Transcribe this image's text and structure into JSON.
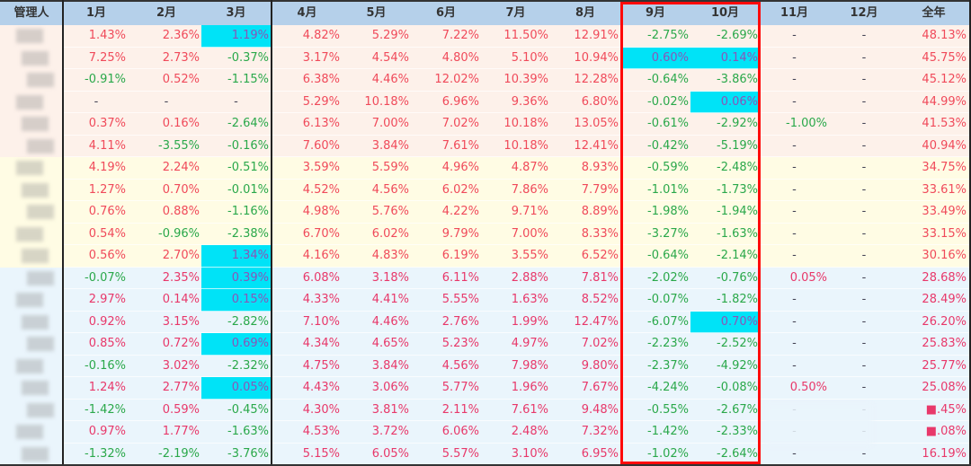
{
  "header": {
    "columns": [
      "管理人",
      "1月",
      "2月",
      "3月",
      "4月",
      "5月",
      "6月",
      "7月",
      "8月",
      "9月",
      "10月",
      "11月",
      "12月",
      "全年"
    ]
  },
  "colors": {
    "header_bg": "#b5d0ea",
    "group1_bg": "#fdf1ea",
    "group2_bg": "#fffce4",
    "group3_bg": "#eaf5fc",
    "positive_text": "#f04a5a",
    "negative_text": "#2aa84a",
    "highlight_bg": "#00e3f7",
    "highlight_text": "#8a55b8",
    "annotation_box": "#ff0a0a"
  },
  "annotation": {
    "highlighted_columns": [
      "9月",
      "10月"
    ]
  },
  "rows": [
    {
      "group": 1,
      "name": "",
      "values": [
        "1.43%",
        "2.36%",
        "1.19%",
        "4.82%",
        "5.29%",
        "7.22%",
        "11.50%",
        "12.91%",
        "-2.75%",
        "-2.69%",
        "-",
        "-",
        "48.13%"
      ],
      "highlight": [
        2
      ]
    },
    {
      "group": 1,
      "name": "",
      "values": [
        "7.25%",
        "2.73%",
        "-0.37%",
        "3.17%",
        "4.54%",
        "4.80%",
        "5.10%",
        "10.94%",
        "0.60%",
        "0.14%",
        "-",
        "-",
        "45.75%"
      ],
      "highlight": [
        8,
        9
      ]
    },
    {
      "group": 1,
      "name": "",
      "values": [
        "-0.91%",
        "0.52%",
        "-1.15%",
        "6.38%",
        "4.46%",
        "12.02%",
        "10.39%",
        "12.28%",
        "-0.64%",
        "-3.86%",
        "-",
        "-",
        "45.12%"
      ],
      "highlight": []
    },
    {
      "group": 1,
      "name": "",
      "values": [
        "-",
        "-",
        "-",
        "5.29%",
        "10.18%",
        "6.96%",
        "9.36%",
        "6.80%",
        "-0.02%",
        "0.06%",
        "-",
        "-",
        "44.99%"
      ],
      "highlight": [
        9
      ]
    },
    {
      "group": 1,
      "name": "",
      "values": [
        "0.37%",
        "0.16%",
        "-2.64%",
        "6.13%",
        "7.00%",
        "7.02%",
        "10.18%",
        "13.05%",
        "-0.61%",
        "-2.92%",
        "-1.00%",
        "-",
        "41.53%"
      ],
      "highlight": []
    },
    {
      "group": 1,
      "name": "",
      "values": [
        "4.11%",
        "-3.55%",
        "-0.16%",
        "7.60%",
        "3.84%",
        "7.61%",
        "10.18%",
        "12.41%",
        "-0.42%",
        "-5.19%",
        "-",
        "-",
        "40.94%"
      ],
      "highlight": []
    },
    {
      "group": 2,
      "name": "",
      "values": [
        "4.19%",
        "2.24%",
        "-0.51%",
        "3.59%",
        "5.59%",
        "4.96%",
        "4.87%",
        "8.93%",
        "-0.59%",
        "-2.48%",
        "-",
        "-",
        "34.75%"
      ],
      "highlight": []
    },
    {
      "group": 2,
      "name": "",
      "values": [
        "1.27%",
        "0.70%",
        "-0.01%",
        "4.52%",
        "4.56%",
        "6.02%",
        "7.86%",
        "7.79%",
        "-1.01%",
        "-1.73%",
        "-",
        "-",
        "33.61%"
      ],
      "highlight": []
    },
    {
      "group": 2,
      "name": "",
      "values": [
        "0.76%",
        "0.88%",
        "-1.16%",
        "4.98%",
        "5.76%",
        "4.22%",
        "9.71%",
        "8.89%",
        "-1.98%",
        "-1.94%",
        "-",
        "-",
        "33.49%"
      ],
      "highlight": []
    },
    {
      "group": 2,
      "name": "",
      "values": [
        "0.54%",
        "-0.96%",
        "-2.38%",
        "6.70%",
        "6.02%",
        "9.79%",
        "7.00%",
        "8.33%",
        "-3.27%",
        "-1.63%",
        "-",
        "-",
        "33.15%"
      ],
      "highlight": []
    },
    {
      "group": 2,
      "name": "",
      "values": [
        "0.56%",
        "2.70%",
        "1.34%",
        "4.16%",
        "4.83%",
        "6.19%",
        "3.55%",
        "6.52%",
        "-0.64%",
        "-2.14%",
        "-",
        "-",
        "30.16%"
      ],
      "highlight": [
        2
      ]
    },
    {
      "group": 3,
      "name": "",
      "values": [
        "-0.07%",
        "2.35%",
        "0.39%",
        "6.08%",
        "3.18%",
        "6.11%",
        "2.88%",
        "7.81%",
        "-2.02%",
        "-0.76%",
        "0.05%",
        "-",
        "28.68%"
      ],
      "highlight": [
        2
      ]
    },
    {
      "group": 3,
      "name": "",
      "values": [
        "2.97%",
        "0.14%",
        "0.15%",
        "4.33%",
        "4.41%",
        "5.55%",
        "1.63%",
        "8.52%",
        "-0.07%",
        "-1.82%",
        "-",
        "-",
        "28.49%"
      ],
      "highlight": [
        2
      ]
    },
    {
      "group": 3,
      "name": "",
      "values": [
        "0.92%",
        "3.15%",
        "-2.82%",
        "7.10%",
        "4.46%",
        "2.76%",
        "1.99%",
        "12.47%",
        "-6.07%",
        "0.70%",
        "-",
        "-",
        "26.20%"
      ],
      "highlight": [
        9
      ]
    },
    {
      "group": 3,
      "name": "",
      "values": [
        "0.85%",
        "0.72%",
        "0.69%",
        "4.34%",
        "4.65%",
        "5.23%",
        "4.97%",
        "7.02%",
        "-2.23%",
        "-2.52%",
        "-",
        "-",
        "25.83%"
      ],
      "highlight": [
        2
      ]
    },
    {
      "group": 3,
      "name": "",
      "values": [
        "-0.16%",
        "3.02%",
        "-2.32%",
        "4.75%",
        "3.84%",
        "4.56%",
        "7.98%",
        "9.80%",
        "-2.37%",
        "-4.92%",
        "-",
        "-",
        "25.77%"
      ],
      "highlight": []
    },
    {
      "group": 3,
      "name": "",
      "values": [
        "1.24%",
        "2.77%",
        "0.05%",
        "4.43%",
        "3.06%",
        "5.77%",
        "1.96%",
        "7.67%",
        "-4.24%",
        "-0.08%",
        "0.50%",
        "-",
        "25.08%"
      ],
      "highlight": [
        2
      ]
    },
    {
      "group": 3,
      "name": "",
      "values": [
        "-1.42%",
        "0.59%",
        "-0.45%",
        "4.30%",
        "3.81%",
        "2.11%",
        "7.61%",
        "9.48%",
        "-0.55%",
        "-2.67%",
        "-",
        "-",
        "■.45%"
      ],
      "highlight": []
    },
    {
      "group": 3,
      "name": "",
      "values": [
        "0.97%",
        "1.77%",
        "-1.63%",
        "4.53%",
        "3.72%",
        "6.06%",
        "2.48%",
        "7.32%",
        "-1.42%",
        "-2.33%",
        "-",
        "-",
        "■.08%"
      ],
      "highlight": []
    },
    {
      "group": 3,
      "name": "",
      "values": [
        "-1.32%",
        "-2.19%",
        "-3.76%",
        "5.15%",
        "6.05%",
        "5.57%",
        "3.10%",
        "6.95%",
        "-1.02%",
        "-2.64%",
        "-",
        "-",
        "16.19%"
      ],
      "highlight": []
    }
  ]
}
